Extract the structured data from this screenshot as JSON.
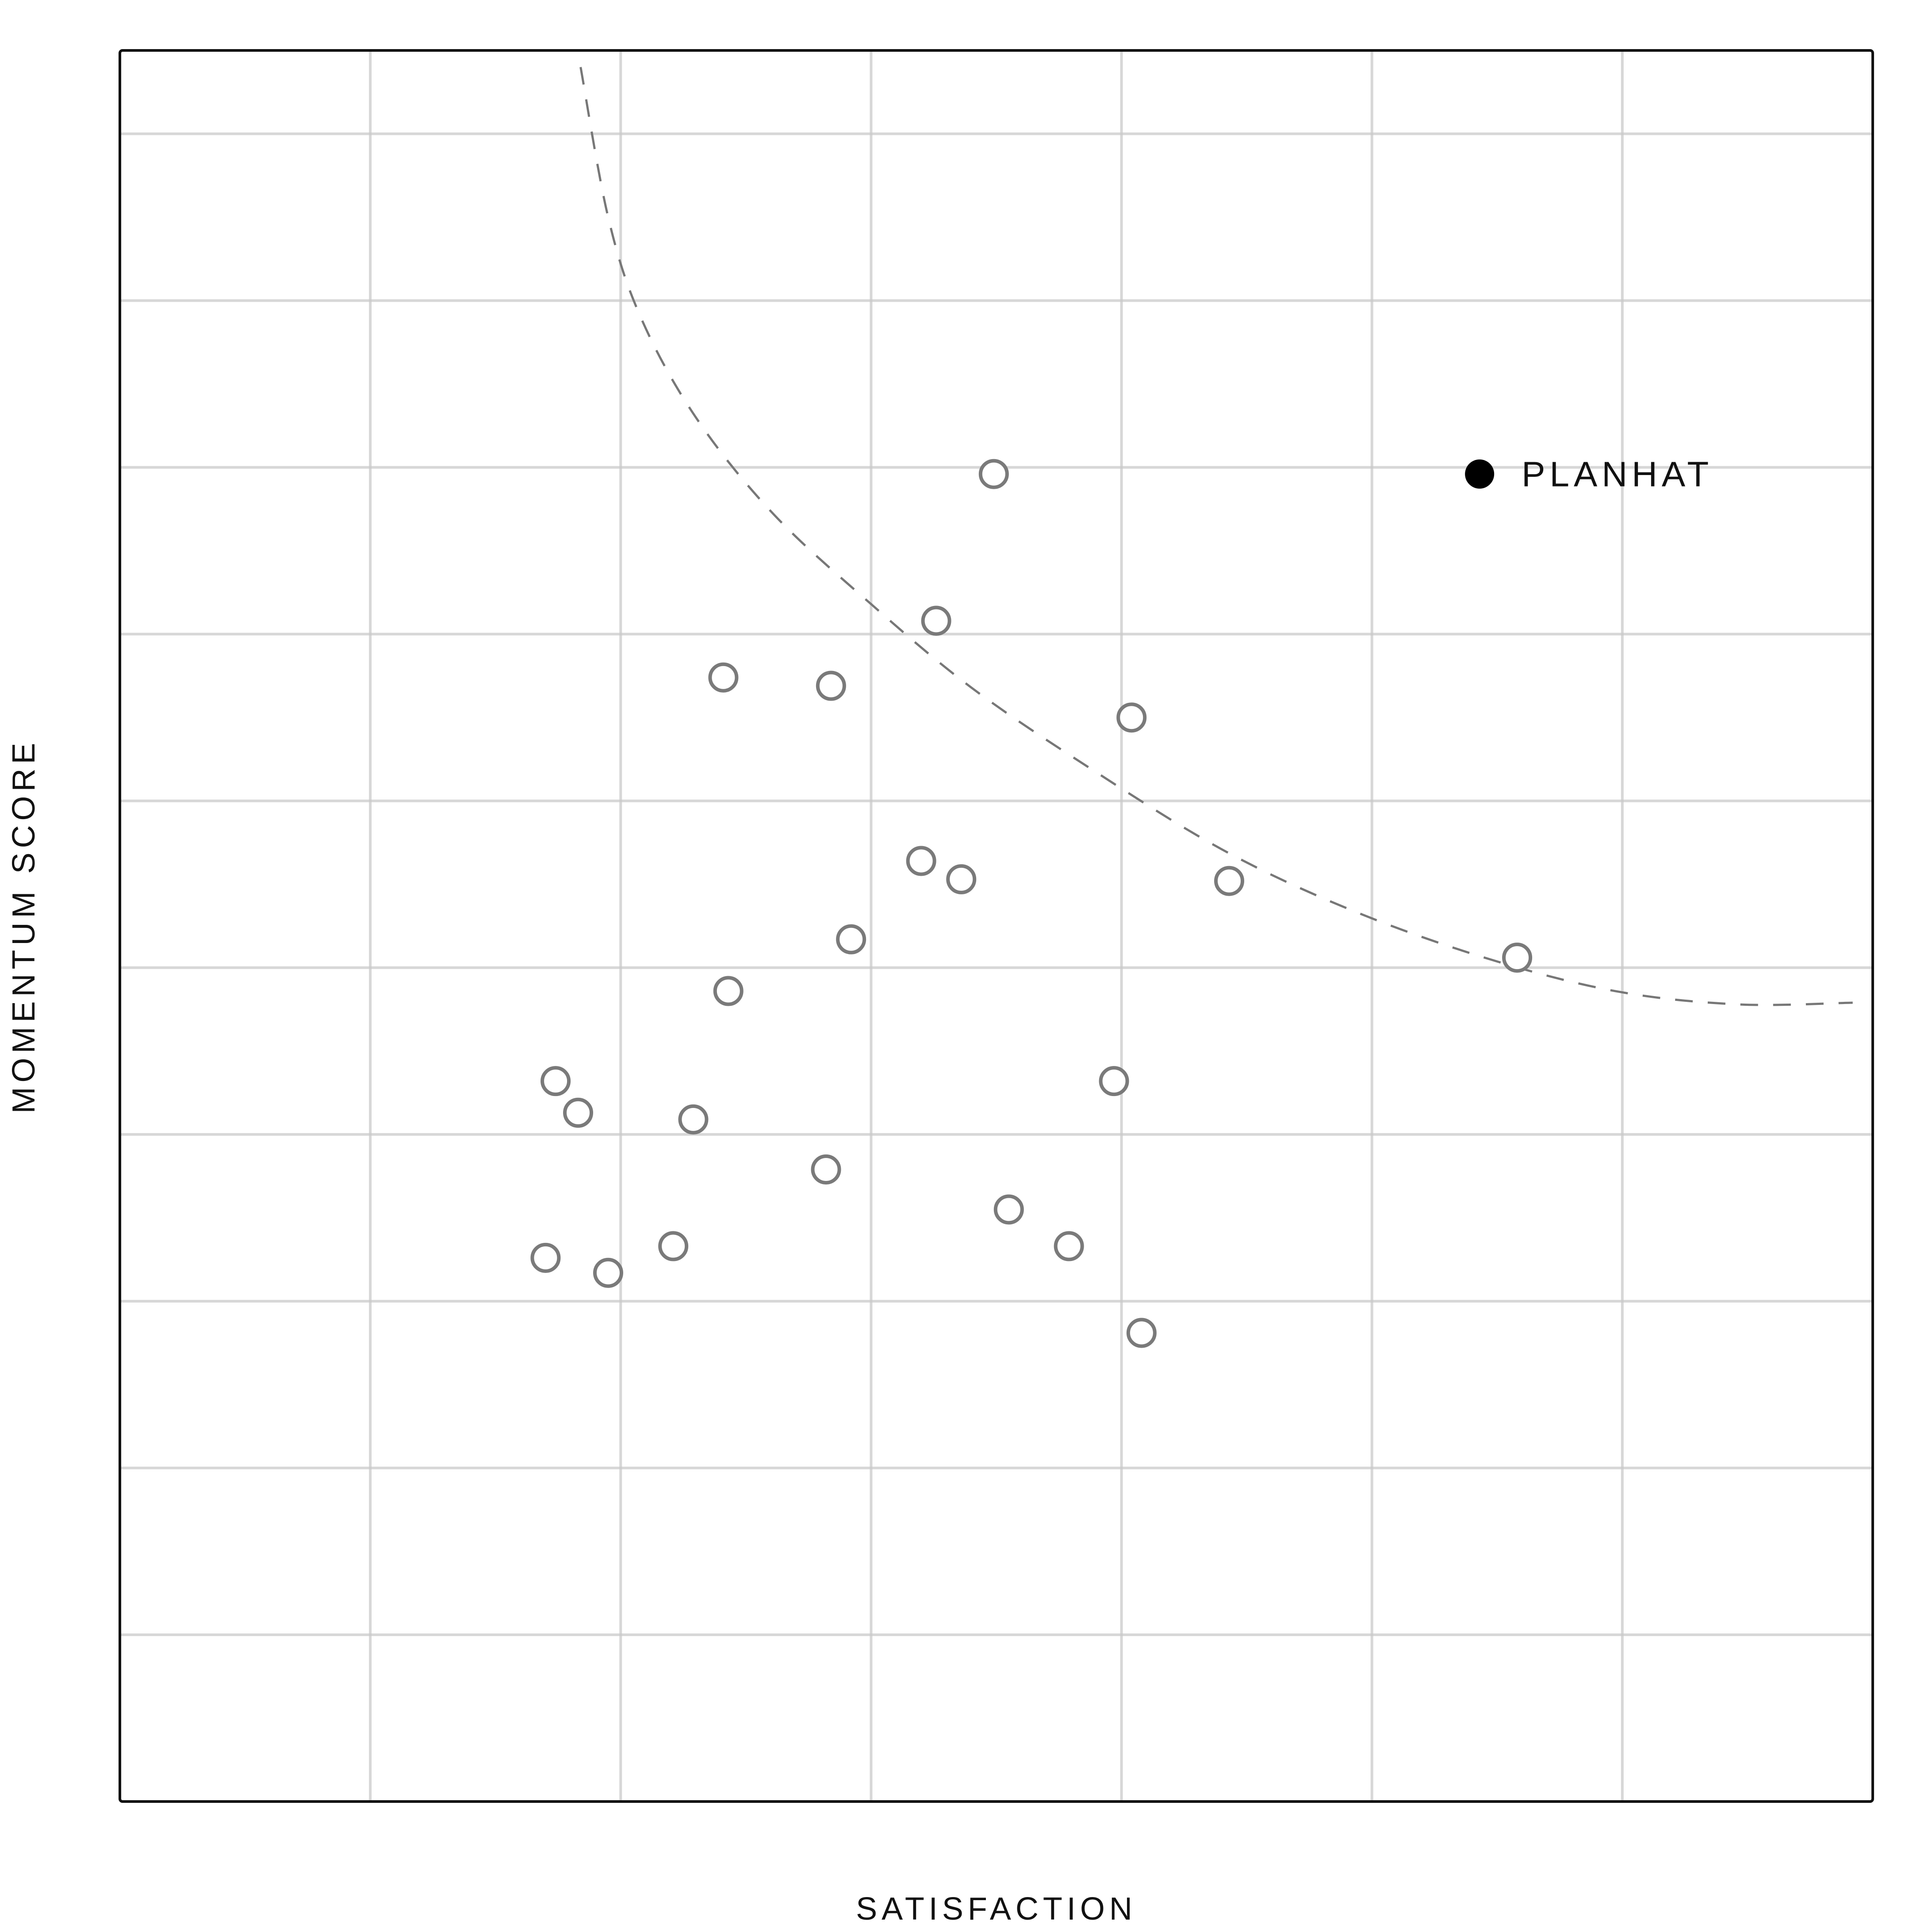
{
  "chart_data": {
    "type": "scatter",
    "xlabel": "SATISFACTION",
    "ylabel": "MOMENTUM SCORE",
    "xlim": [
      0,
      7
    ],
    "ylim": [
      0,
      10.5
    ],
    "grid": true,
    "tick_labels_shown": false,
    "series": [
      {
        "name": "",
        "marker": "hollow-circle",
        "color": "#7a7a7a",
        "points": [
          {
            "x": 3.49,
            "y": 7.96
          },
          {
            "x": 3.26,
            "y": 7.08
          },
          {
            "x": 2.41,
            "y": 6.74
          },
          {
            "x": 2.84,
            "y": 6.69
          },
          {
            "x": 4.04,
            "y": 6.5
          },
          {
            "x": 3.2,
            "y": 5.64
          },
          {
            "x": 3.36,
            "y": 5.53
          },
          {
            "x": 4.43,
            "y": 5.52
          },
          {
            "x": 2.92,
            "y": 5.17
          },
          {
            "x": 2.43,
            "y": 4.86
          },
          {
            "x": 5.58,
            "y": 5.06
          },
          {
            "x": 1.74,
            "y": 4.32
          },
          {
            "x": 1.83,
            "y": 4.13
          },
          {
            "x": 2.29,
            "y": 4.09
          },
          {
            "x": 3.97,
            "y": 4.32
          },
          {
            "x": 2.82,
            "y": 3.79
          },
          {
            "x": 3.55,
            "y": 3.55
          },
          {
            "x": 3.79,
            "y": 3.33
          },
          {
            "x": 2.21,
            "y": 3.33
          },
          {
            "x": 1.7,
            "y": 3.26
          },
          {
            "x": 1.95,
            "y": 3.17
          },
          {
            "x": 4.08,
            "y": 2.81
          }
        ]
      },
      {
        "name": "PLANHAT",
        "marker": "filled-circle",
        "color": "#000000",
        "points": [
          {
            "x": 5.43,
            "y": 7.96
          }
        ]
      }
    ],
    "trend_curve": {
      "style": "dashed",
      "color": "#777777",
      "points": [
        [
          1.84,
          10.4
        ],
        [
          1.95,
          9.5
        ],
        [
          2.08,
          8.9
        ],
        [
          2.3,
          8.3
        ],
        [
          2.61,
          7.72
        ],
        [
          3.0,
          7.18
        ],
        [
          3.4,
          6.68
        ],
        [
          3.87,
          6.2
        ],
        [
          4.4,
          5.71
        ],
        [
          4.91,
          5.35
        ],
        [
          5.45,
          5.06
        ],
        [
          5.97,
          4.86
        ],
        [
          6.46,
          4.78
        ],
        [
          6.92,
          4.79
        ]
      ]
    }
  }
}
